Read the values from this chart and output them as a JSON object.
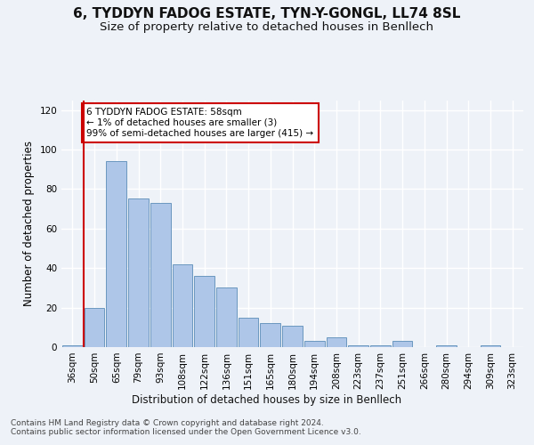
{
  "title": "6, TYDDYN FADOG ESTATE, TYN-Y-GONGL, LL74 8SL",
  "subtitle": "Size of property relative to detached houses in Benllech",
  "xlabel": "Distribution of detached houses by size in Benllech",
  "ylabel": "Number of detached properties",
  "bar_color": "#aec6e8",
  "bar_edge_color": "#5b8db8",
  "categories": [
    "36sqm",
    "50sqm",
    "65sqm",
    "79sqm",
    "93sqm",
    "108sqm",
    "122sqm",
    "136sqm",
    "151sqm",
    "165sqm",
    "180sqm",
    "194sqm",
    "208sqm",
    "223sqm",
    "237sqm",
    "251sqm",
    "266sqm",
    "280sqm",
    "294sqm",
    "309sqm",
    "323sqm"
  ],
  "values": [
    1,
    20,
    94,
    75,
    73,
    42,
    36,
    30,
    15,
    12,
    11,
    3,
    5,
    1,
    1,
    3,
    0,
    1,
    0,
    1,
    0
  ],
  "ylim": [
    0,
    125
  ],
  "yticks": [
    0,
    20,
    40,
    60,
    80,
    100,
    120
  ],
  "vline_color": "#cc0000",
  "annotation_text": "6 TYDDYN FADOG ESTATE: 58sqm\n← 1% of detached houses are smaller (3)\n99% of semi-detached houses are larger (415) →",
  "annotation_box_color": "#ffffff",
  "annotation_box_edge": "#cc0000",
  "footer_text": "Contains HM Land Registry data © Crown copyright and database right 2024.\nContains public sector information licensed under the Open Government Licence v3.0.",
  "bg_color": "#eef2f8",
  "grid_color": "#ffffff",
  "title_fontsize": 11,
  "subtitle_fontsize": 9.5,
  "axis_label_fontsize": 8.5,
  "tick_fontsize": 7.5,
  "footer_fontsize": 6.5
}
